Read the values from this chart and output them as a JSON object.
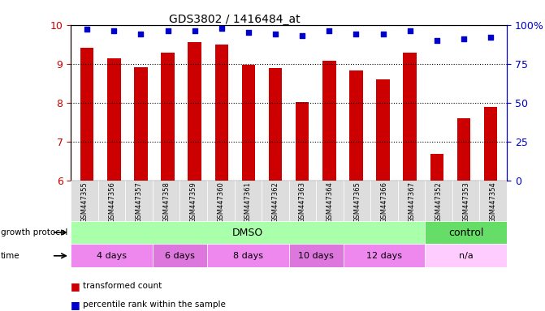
{
  "title": "GDS3802 / 1416484_at",
  "samples": [
    "GSM447355",
    "GSM447356",
    "GSM447357",
    "GSM447358",
    "GSM447359",
    "GSM447360",
    "GSM447361",
    "GSM447362",
    "GSM447363",
    "GSM447364",
    "GSM447365",
    "GSM447366",
    "GSM447367",
    "GSM447352",
    "GSM447353",
    "GSM447354"
  ],
  "transformed_count": [
    9.42,
    9.15,
    8.92,
    9.28,
    9.55,
    9.5,
    8.98,
    8.88,
    8.02,
    9.08,
    8.82,
    8.6,
    9.28,
    6.68,
    7.6,
    7.9
  ],
  "percentile_rank": [
    97,
    96,
    94,
    96,
    96,
    98,
    95,
    94,
    93,
    96,
    94,
    94,
    96,
    90,
    91,
    92
  ],
  "ylim_left": [
    6,
    10
  ],
  "ylim_right": [
    0,
    100
  ],
  "yticks_left": [
    6,
    7,
    8,
    9,
    10
  ],
  "yticks_right": [
    0,
    25,
    50,
    75,
    100
  ],
  "bar_color": "#cc0000",
  "dot_color": "#0000cc",
  "axis_label_color_left": "#cc0000",
  "axis_label_color_right": "#0000cc",
  "growth_protocol_label": "growth protocol",
  "time_label": "time",
  "dmso_color": "#aaffaa",
  "control_color": "#66dd66",
  "time_colors": [
    "#ee88ee",
    "#dd77dd",
    "#ee88ee",
    "#dd77dd",
    "#ee88ee",
    "#ffccff"
  ],
  "time_labels": [
    "4 days",
    "6 days",
    "8 days",
    "10 days",
    "12 days",
    "n/a"
  ],
  "time_spans": [
    3,
    2,
    3,
    2,
    3,
    3
  ],
  "legend_bar_label": "transformed count",
  "legend_dot_label": "percentile rank within the sample"
}
